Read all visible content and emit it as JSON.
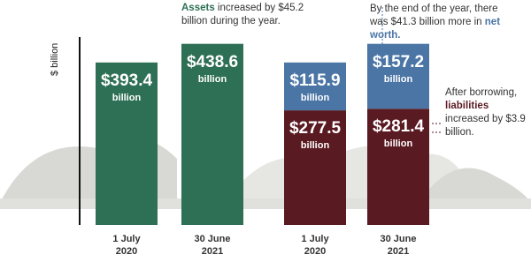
{
  "chart_data": {
    "type": "bar",
    "stacked": true,
    "y_label": "$ billion",
    "categories": [
      "1 July 2020",
      "30 June 2021",
      "1 July 2020",
      "30 June 2021"
    ],
    "series": [
      {
        "color": "#2e7055",
        "values": [
          393.4,
          438.6,
          null,
          null
        ],
        "value_labels": [
          "$393.4",
          "$438.6",
          null,
          null
        ]
      },
      {
        "color": "#5a1a22",
        "values": [
          null,
          null,
          277.5,
          281.4
        ],
        "value_labels": [
          null,
          null,
          "$277.5",
          "$281.4"
        ]
      },
      {
        "color": "#4a75a5",
        "values": [
          null,
          null,
          115.9,
          157.2
        ],
        "value_labels": [
          null,
          null,
          "$115.9",
          "$157.2"
        ]
      }
    ],
    "value_unit": "billion",
    "ylim": [
      0,
      455
    ],
    "annotations": [
      {
        "segments": [
          {
            "text": "Assets",
            "strong": true,
            "color": "#2e7055"
          },
          {
            "text": "increased by $45.2 billion during the year."
          }
        ]
      },
      {
        "segments": [
          {
            "text": "By the end of the year, there was $41.3 billion more in"
          },
          {
            "text": "net worth.",
            "strong": true,
            "color": "#4a75a5"
          }
        ]
      },
      {
        "segments": [
          {
            "text": "After borrowing,"
          },
          {
            "text": "liabilities",
            "strong": true,
            "color": "#5a1a22"
          },
          {
            "text": "increased by $3.9 billion."
          }
        ]
      }
    ]
  }
}
